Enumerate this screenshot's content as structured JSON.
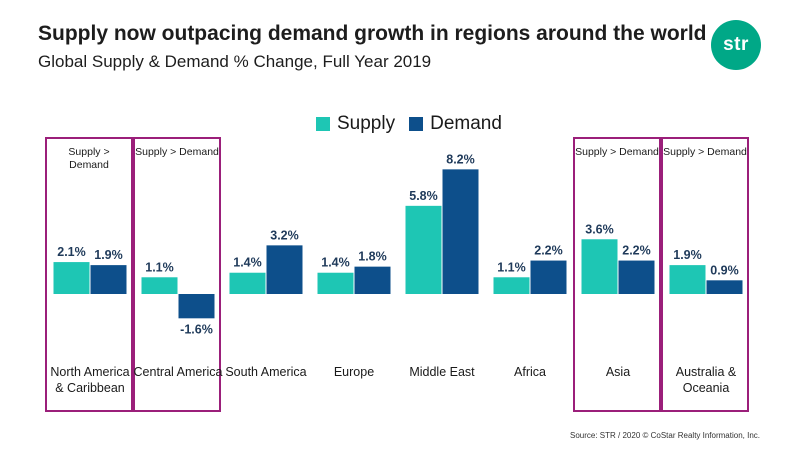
{
  "header": {
    "title": "Supply now outpacing demand growth in regions around the world",
    "subtitle": "Global Supply & Demand % Change, Full Year 2019"
  },
  "logo": {
    "text": "str"
  },
  "legend": {
    "supply_label": "Supply",
    "demand_label": "Demand"
  },
  "colors": {
    "supply": "#1ec6b4",
    "demand": "#0d4f8b",
    "box": "#9b1f7a"
  },
  "source": "Source: STR / 2020 © CoStar Realty Information, Inc.",
  "chart_data": {
    "type": "bar",
    "title": "Global Supply & Demand % Change, Full Year 2019",
    "categories": [
      "North America & Caribbean",
      "Central America",
      "South America",
      "Europe",
      "Middle East",
      "Africa",
      "Asia",
      "Australia & Oceania"
    ],
    "category_lines": [
      [
        "North America",
        "& Caribbean"
      ],
      [
        "Central America"
      ],
      [
        "South America"
      ],
      [
        "Europe"
      ],
      [
        "Middle East"
      ],
      [
        "Africa"
      ],
      [
        "Asia"
      ],
      [
        "Australia &",
        "Oceania"
      ]
    ],
    "series": [
      {
        "name": "Supply",
        "values": [
          2.1,
          1.1,
          1.4,
          1.4,
          5.8,
          1.1,
          3.6,
          1.9
        ],
        "labels": [
          "2.1%",
          "1.1%",
          "1.4%",
          "1.4%",
          "5.8%",
          "1.1%",
          "3.6%",
          "1.9%"
        ]
      },
      {
        "name": "Demand",
        "values": [
          1.9,
          -1.6,
          3.2,
          1.8,
          8.2,
          2.2,
          2.2,
          0.9
        ],
        "labels": [
          "1.9%",
          "-1.6%",
          "3.2%",
          "1.8%",
          "8.2%",
          "2.2%",
          "2.2%",
          "0.9%"
        ]
      }
    ],
    "highlight_notes": [
      {
        "category_index": 0,
        "lines": [
          "Supply >",
          "Demand"
        ]
      },
      {
        "category_index": 1,
        "lines": [
          "Supply > Demand"
        ]
      },
      {
        "category_index": 6,
        "lines": [
          "Supply > Demand"
        ]
      },
      {
        "category_index": 7,
        "lines": [
          "Supply > Demand"
        ]
      }
    ],
    "legend_position": "top-center",
    "xlabel": "",
    "ylabel": "",
    "grid": false
  }
}
